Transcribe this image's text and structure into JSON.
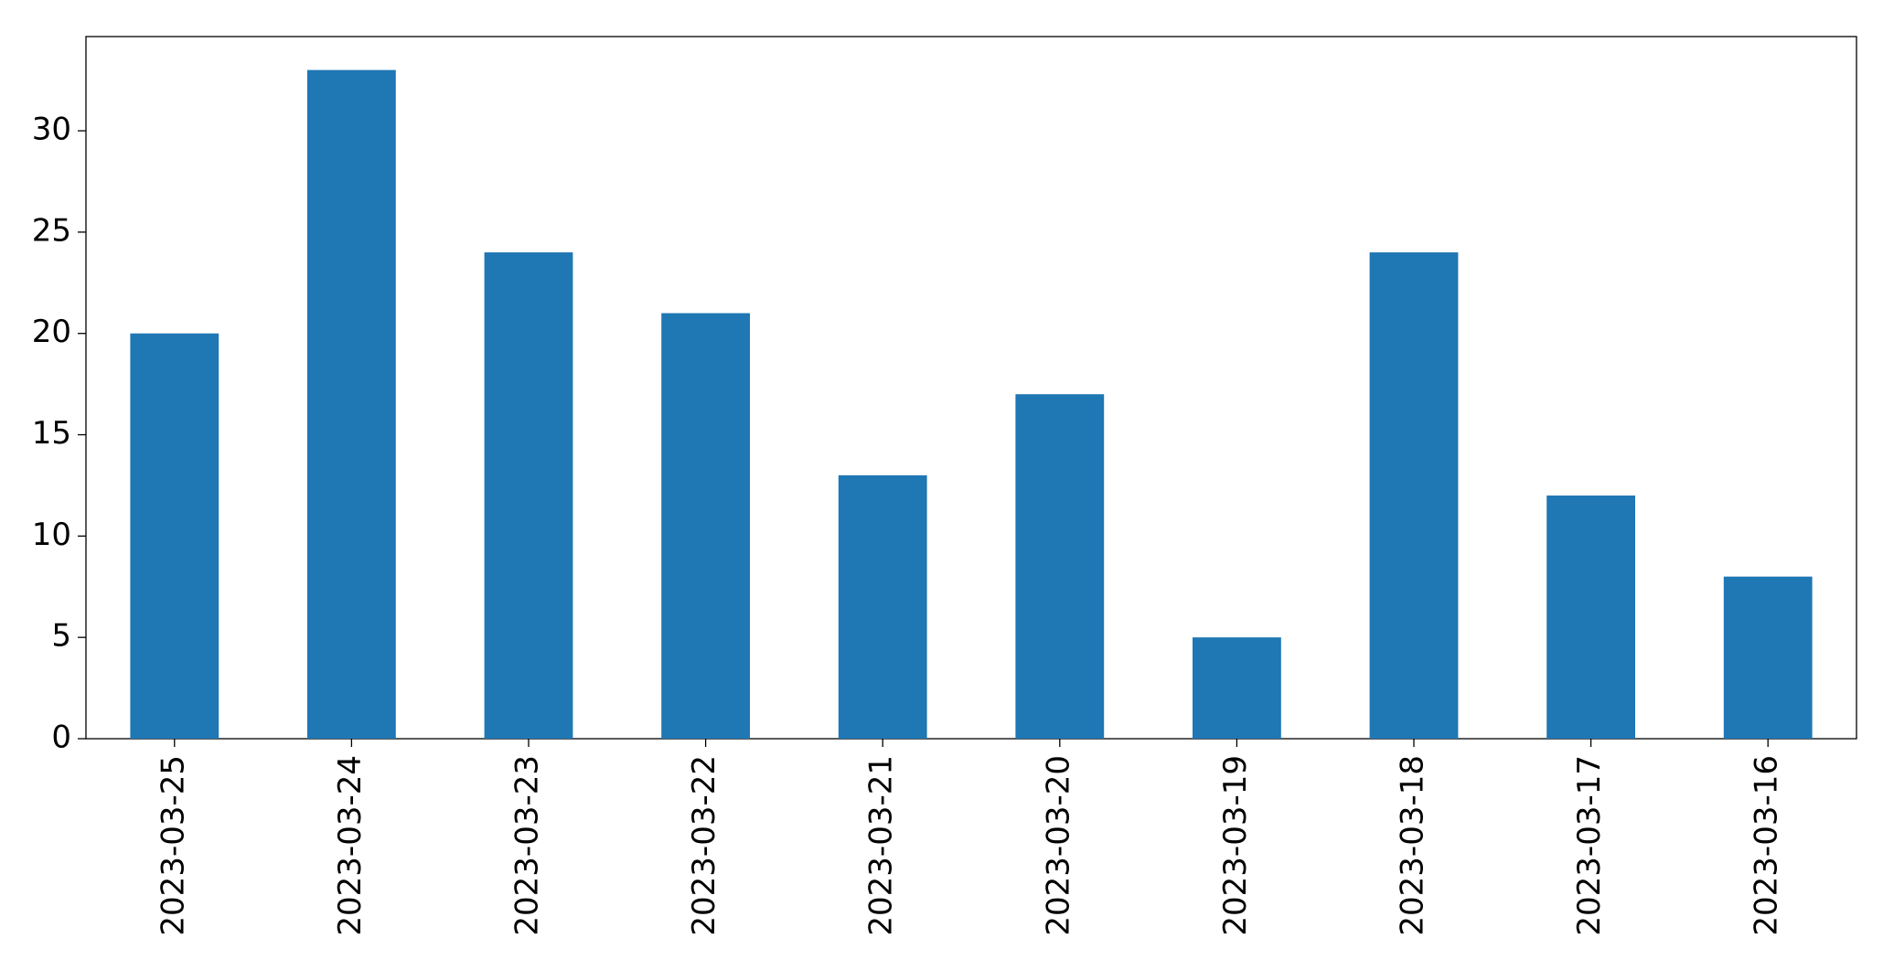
{
  "chart_data": {
    "type": "bar",
    "categories": [
      "2023-03-25",
      "2023-03-24",
      "2023-03-23",
      "2023-03-22",
      "2023-03-21",
      "2023-03-20",
      "2023-03-19",
      "2023-03-18",
      "2023-03-17",
      "2023-03-16"
    ],
    "values": [
      20,
      33,
      24,
      21,
      13,
      17,
      5,
      24,
      12,
      8
    ],
    "color": "#1f77b4",
    "ylim": [
      0,
      34.65
    ],
    "yticks": [
      0,
      5,
      10,
      15,
      20,
      25,
      30
    ],
    "grid": false
  }
}
